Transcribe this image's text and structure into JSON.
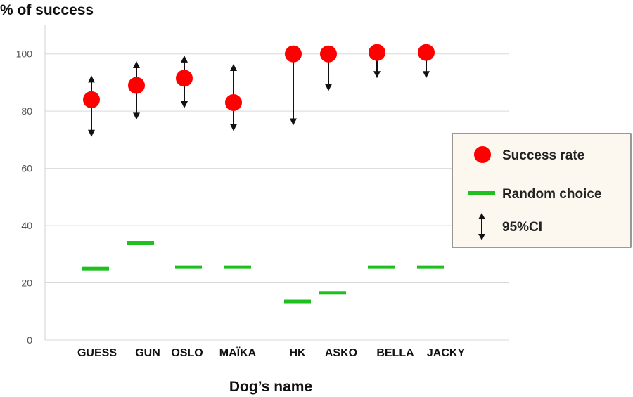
{
  "chart_data": {
    "type": "scatter",
    "ylabel": "% of success",
    "xlabel": "Dog’s name",
    "ylim": [
      0,
      110
    ],
    "yticks": [
      0,
      20,
      40,
      60,
      80,
      100
    ],
    "grid": true,
    "legend_position": "right",
    "categories": [
      "GUESS",
      "GUN",
      "OSLO",
      "MAÏKA",
      "HK",
      "ASKO",
      "BELLA",
      "JACKY"
    ],
    "series": [
      {
        "name": "Success rate",
        "marker": "circle",
        "color": "#ff0000",
        "values": [
          84,
          89,
          91.5,
          83,
          100,
          100,
          100.5,
          100.5
        ],
        "ci_low": [
          72,
          78,
          82,
          74,
          76,
          88,
          92.5,
          92.5
        ],
        "ci_high": [
          91.5,
          96.5,
          98.5,
          95.5,
          100,
          100,
          100.5,
          100.5
        ]
      },
      {
        "name": "Random choice",
        "marker": "line",
        "color": "#1fbf1f",
        "values": [
          25,
          34,
          25.5,
          25.5,
          13.5,
          16.5,
          25.5,
          25.5
        ]
      }
    ],
    "ci_label": "95%CI"
  }
}
